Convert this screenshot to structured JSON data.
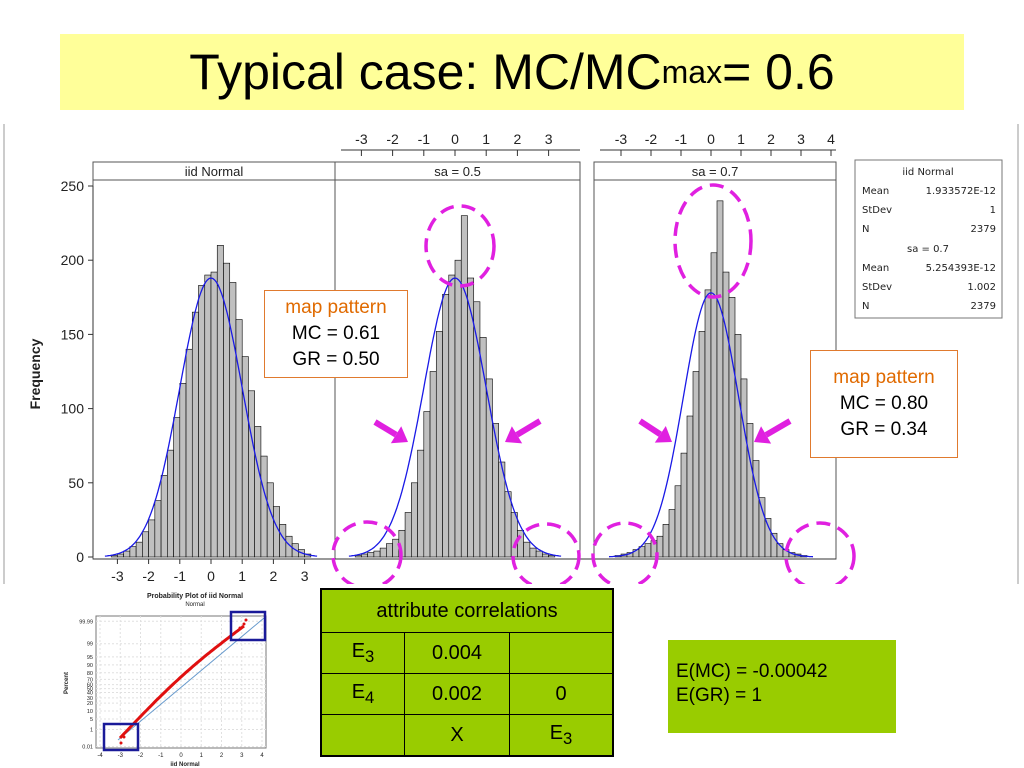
{
  "title": {
    "main": "Typical case: MC/MC",
    "sub": "max",
    "tail": " = 0.6"
  },
  "colors": {
    "bar": "#c0c0c0",
    "curve": "#1a1ae6",
    "highlight": "#e020e0",
    "callout_border": "#e07a2e",
    "table_bg": "#99cc00",
    "title_bg": "#ffff99"
  },
  "chart_data": [
    {
      "type": "bar",
      "panels": [
        "iid Normal",
        "sa = 0.5",
        "sa = 0.7"
      ],
      "ylabel": "Frequency",
      "ylim": [
        0,
        250
      ],
      "yticks": [
        0,
        50,
        100,
        150,
        200,
        250
      ],
      "xticks_bottom": [
        "-3",
        "-2",
        "-1",
        "0",
        "1",
        "2",
        "3"
      ],
      "xticks_top_1": [
        "-3",
        "-2",
        "-1",
        "0",
        "1",
        "2",
        "3"
      ],
      "xticks_top_2": [
        "-3",
        "-2",
        "-1",
        "0",
        "1",
        "2",
        "3",
        "4"
      ],
      "series": [
        {
          "values": [
            1,
            2,
            4,
            7,
            10,
            17,
            25,
            38,
            55,
            72,
            94,
            117,
            140,
            165,
            183,
            190,
            192,
            210,
            198,
            185,
            160,
            135,
            112,
            88,
            68,
            50,
            34,
            22,
            14,
            9,
            5,
            2
          ]
        },
        {
          "values": [
            1,
            2,
            3,
            4,
            6,
            9,
            12,
            18,
            30,
            50,
            72,
            98,
            125,
            152,
            177,
            190,
            200,
            230,
            188,
            172,
            148,
            120,
            90,
            64,
            44,
            30,
            18,
            10,
            6,
            4,
            2,
            1
          ]
        },
        {
          "values": [
            1,
            2,
            3,
            5,
            7,
            9,
            11,
            14,
            22,
            32,
            48,
            70,
            95,
            125,
            152,
            180,
            205,
            240,
            192,
            175,
            150,
            120,
            90,
            65,
            40,
            26,
            16,
            9,
            5,
            3,
            2,
            1
          ]
        }
      ],
      "stats_box": {
        "title1": "iid Normal",
        "rows1": [
          [
            "Mean",
            "1.933572E-12"
          ],
          [
            "StDev",
            "1"
          ],
          [
            "N",
            "2379"
          ]
        ],
        "title2": "sa = 0.7",
        "rows2": [
          [
            "Mean",
            "5.254393E-12"
          ],
          [
            "StDev",
            "1.002"
          ],
          [
            "N",
            "2379"
          ]
        ]
      }
    },
    {
      "type": "scatter",
      "title": "Probability Plot of iid Normal",
      "subtitle": "Normal",
      "xlabel": "iid Normal",
      "ylabel": "Percent",
      "xticks": [
        "-4",
        "-3",
        "-2",
        "-1",
        "0",
        "1",
        "2",
        "3",
        "4"
      ],
      "yticks": [
        "0.01",
        "1",
        "5",
        "10",
        "20",
        "30",
        "40",
        "50",
        "60",
        "70",
        "80",
        "90",
        "95",
        "99",
        "99.99"
      ]
    }
  ],
  "callouts": [
    {
      "head": "map pattern",
      "mc": "MC = 0.61",
      "gr": "GR = 0.50"
    },
    {
      "head": "map pattern",
      "mc": "MC = 0.80",
      "gr": "GR = 0.34"
    }
  ],
  "corr_table": {
    "header": "attribute correlations",
    "rows": [
      {
        "label": "E",
        "sub": "3",
        "c1": "0.004",
        "c2": ""
      },
      {
        "label": "E",
        "sub": "4",
        "c1": "0.002",
        "c2": "0"
      },
      {
        "label": "",
        "sub": "",
        "c1": "X",
        "c2": "E",
        "c2sub": "3"
      }
    ]
  },
  "expectations": {
    "mc": "E(MC) = -0.00042",
    "gr": "E(GR) =  1"
  }
}
